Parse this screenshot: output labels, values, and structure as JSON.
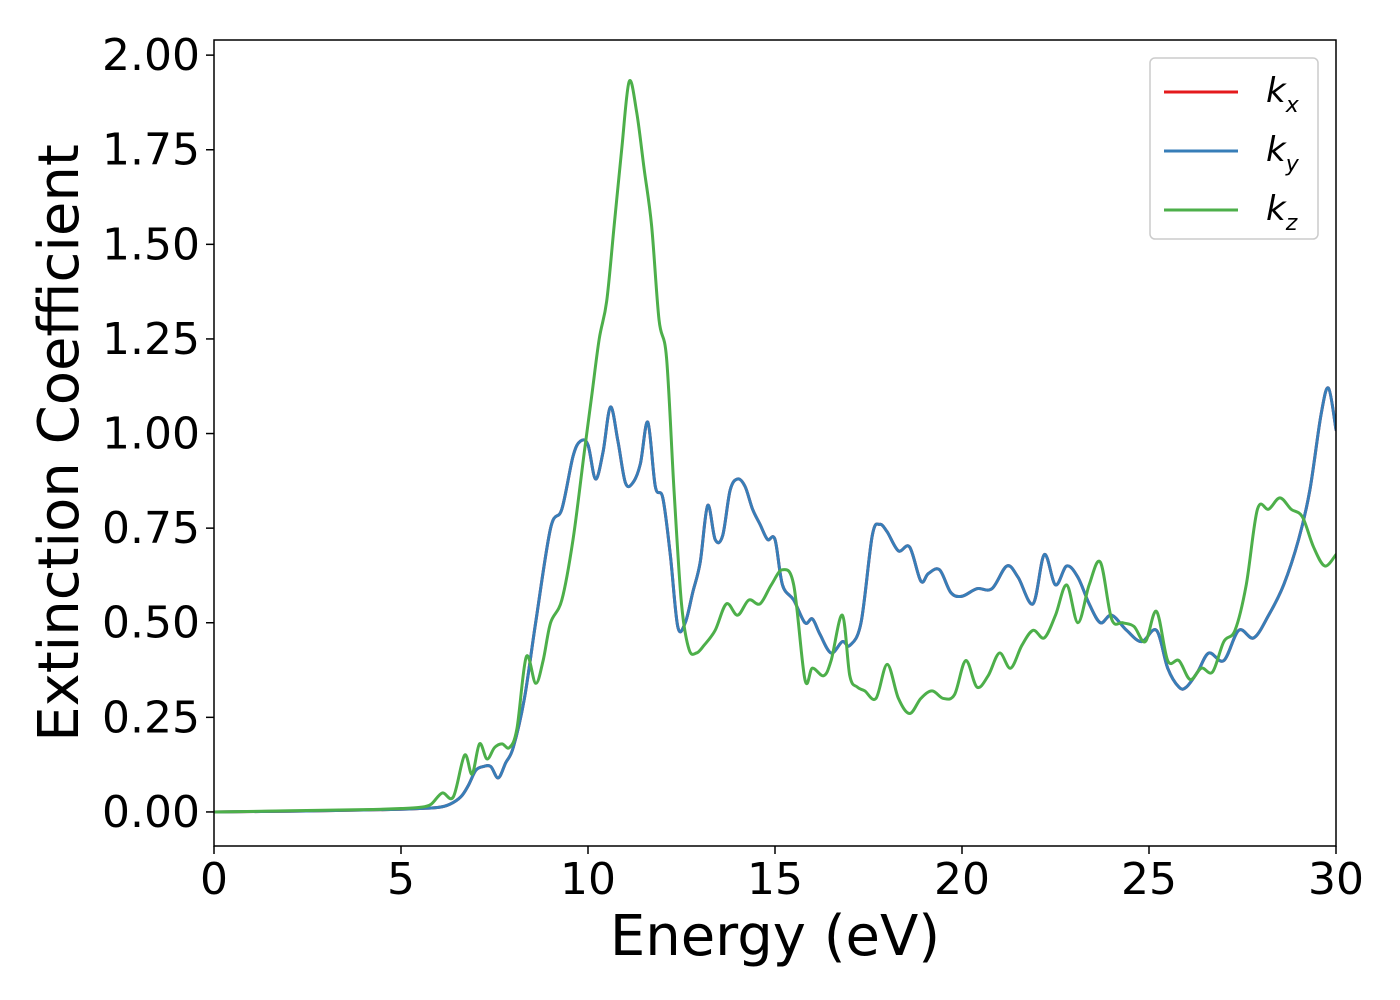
{
  "chart_data": {
    "type": "line",
    "title": "",
    "xlabel": "Energy (eV)",
    "ylabel": "Extinction Coefficient",
    "xlim": [
      0,
      30
    ],
    "ylim": [
      -0.09,
      2.04
    ],
    "xticks": [
      0,
      5,
      10,
      15,
      20,
      25,
      30
    ],
    "xtick_labels": [
      "0",
      "5",
      "10",
      "15",
      "20",
      "25",
      "30"
    ],
    "yticks": [
      0.0,
      0.25,
      0.5,
      0.75,
      1.0,
      1.25,
      1.5,
      1.75,
      2.0
    ],
    "ytick_labels": [
      "0.00",
      "0.25",
      "0.50",
      "0.75",
      "1.00",
      "1.25",
      "1.50",
      "1.75",
      "2.00"
    ],
    "grid": false,
    "legend_position": "top-right",
    "series": [
      {
        "name": "k_x",
        "label_main": "k",
        "label_sub": "x",
        "color": "#e41a1c",
        "x": [
          0,
          2,
          4,
          5,
          5.5,
          6,
          6.3,
          6.6,
          6.8,
          7.0,
          7.2,
          7.4,
          7.6,
          7.8,
          8.0,
          8.3,
          8.6,
          9.0,
          9.3,
          9.6,
          9.8,
          10.0,
          10.2,
          10.4,
          10.6,
          10.8,
          11.0,
          11.2,
          11.4,
          11.6,
          11.8,
          12.0,
          12.2,
          12.4,
          12.6,
          12.8,
          13.0,
          13.2,
          13.4,
          13.6,
          13.8,
          14.0,
          14.2,
          14.4,
          14.6,
          14.8,
          15.0,
          15.2,
          15.5,
          15.8,
          16.0,
          16.2,
          16.5,
          16.8,
          17.0,
          17.3,
          17.6,
          17.8,
          18.0,
          18.3,
          18.6,
          18.9,
          19.1,
          19.4,
          19.7,
          20.0,
          20.4,
          20.8,
          21.2,
          21.5,
          21.9,
          22.2,
          22.5,
          22.8,
          23.1,
          23.4,
          23.7,
          24.0,
          24.4,
          24.8,
          25.2,
          25.5,
          25.8,
          26.0,
          26.3,
          26.6,
          27.0,
          27.4,
          27.8,
          28.2,
          28.6,
          29.0,
          29.3,
          29.6,
          29.8,
          30.0
        ],
        "y": [
          0.0,
          0.002,
          0.005,
          0.007,
          0.009,
          0.012,
          0.02,
          0.04,
          0.07,
          0.11,
          0.12,
          0.12,
          0.09,
          0.13,
          0.17,
          0.3,
          0.5,
          0.75,
          0.8,
          0.94,
          0.98,
          0.97,
          0.88,
          0.95,
          1.07,
          0.98,
          0.87,
          0.87,
          0.92,
          1.03,
          0.86,
          0.83,
          0.68,
          0.49,
          0.5,
          0.58,
          0.66,
          0.81,
          0.72,
          0.73,
          0.85,
          0.88,
          0.86,
          0.8,
          0.76,
          0.72,
          0.72,
          0.6,
          0.56,
          0.5,
          0.51,
          0.47,
          0.42,
          0.45,
          0.44,
          0.5,
          0.73,
          0.76,
          0.74,
          0.69,
          0.7,
          0.61,
          0.63,
          0.64,
          0.58,
          0.57,
          0.59,
          0.59,
          0.65,
          0.62,
          0.55,
          0.68,
          0.6,
          0.65,
          0.62,
          0.55,
          0.5,
          0.52,
          0.48,
          0.45,
          0.48,
          0.38,
          0.33,
          0.33,
          0.37,
          0.42,
          0.4,
          0.48,
          0.46,
          0.52,
          0.6,
          0.72,
          0.85,
          1.05,
          1.12,
          1.01
        ]
      },
      {
        "name": "k_y",
        "label_main": "k",
        "label_sub": "y",
        "color": "#377eb8",
        "x": [
          0,
          2,
          4,
          5,
          5.5,
          6,
          6.3,
          6.6,
          6.8,
          7.0,
          7.2,
          7.4,
          7.6,
          7.8,
          8.0,
          8.3,
          8.6,
          9.0,
          9.3,
          9.6,
          9.8,
          10.0,
          10.2,
          10.4,
          10.6,
          10.8,
          11.0,
          11.2,
          11.4,
          11.6,
          11.8,
          12.0,
          12.2,
          12.4,
          12.6,
          12.8,
          13.0,
          13.2,
          13.4,
          13.6,
          13.8,
          14.0,
          14.2,
          14.4,
          14.6,
          14.8,
          15.0,
          15.2,
          15.5,
          15.8,
          16.0,
          16.2,
          16.5,
          16.8,
          17.0,
          17.3,
          17.6,
          17.8,
          18.0,
          18.3,
          18.6,
          18.9,
          19.1,
          19.4,
          19.7,
          20.0,
          20.4,
          20.8,
          21.2,
          21.5,
          21.9,
          22.2,
          22.5,
          22.8,
          23.1,
          23.4,
          23.7,
          24.0,
          24.4,
          24.8,
          25.2,
          25.5,
          25.8,
          26.0,
          26.3,
          26.6,
          27.0,
          27.4,
          27.8,
          28.2,
          28.6,
          29.0,
          29.3,
          29.6,
          29.8,
          30.0
        ],
        "y": [
          0.0,
          0.002,
          0.005,
          0.007,
          0.009,
          0.012,
          0.02,
          0.04,
          0.07,
          0.11,
          0.12,
          0.12,
          0.09,
          0.13,
          0.17,
          0.3,
          0.5,
          0.75,
          0.8,
          0.94,
          0.98,
          0.97,
          0.88,
          0.95,
          1.07,
          0.98,
          0.87,
          0.87,
          0.92,
          1.03,
          0.86,
          0.83,
          0.68,
          0.49,
          0.5,
          0.58,
          0.66,
          0.81,
          0.72,
          0.73,
          0.85,
          0.88,
          0.86,
          0.8,
          0.76,
          0.72,
          0.72,
          0.6,
          0.56,
          0.5,
          0.51,
          0.47,
          0.42,
          0.45,
          0.44,
          0.5,
          0.73,
          0.76,
          0.74,
          0.69,
          0.7,
          0.61,
          0.63,
          0.64,
          0.58,
          0.57,
          0.59,
          0.59,
          0.65,
          0.62,
          0.55,
          0.68,
          0.6,
          0.65,
          0.62,
          0.55,
          0.5,
          0.52,
          0.48,
          0.45,
          0.48,
          0.38,
          0.33,
          0.33,
          0.37,
          0.42,
          0.4,
          0.48,
          0.46,
          0.52,
          0.6,
          0.72,
          0.85,
          1.05,
          1.12,
          1.01
        ]
      },
      {
        "name": "k_z",
        "label_main": "k",
        "label_sub": "z",
        "color": "#4daf4a",
        "x": [
          0,
          2,
          4,
          5,
          5.5,
          5.8,
          6.1,
          6.4,
          6.7,
          6.9,
          7.1,
          7.3,
          7.5,
          7.7,
          7.9,
          8.1,
          8.35,
          8.6,
          8.8,
          9.0,
          9.3,
          9.6,
          9.9,
          10.1,
          10.3,
          10.5,
          10.7,
          10.9,
          11.1,
          11.3,
          11.5,
          11.7,
          11.9,
          12.1,
          12.3,
          12.5,
          12.7,
          12.9,
          13.1,
          13.4,
          13.7,
          14.0,
          14.3,
          14.6,
          14.9,
          15.2,
          15.5,
          15.8,
          16.0,
          16.3,
          16.5,
          16.8,
          17.0,
          17.2,
          17.4,
          17.7,
          18.0,
          18.3,
          18.6,
          18.9,
          19.2,
          19.5,
          19.8,
          20.1,
          20.4,
          20.7,
          21.0,
          21.3,
          21.6,
          21.9,
          22.2,
          22.5,
          22.8,
          23.1,
          23.4,
          23.7,
          24.0,
          24.3,
          24.6,
          24.9,
          25.2,
          25.5,
          25.8,
          26.1,
          26.4,
          26.7,
          27.0,
          27.3,
          27.6,
          27.9,
          28.2,
          28.5,
          28.8,
          29.1,
          29.4,
          29.7,
          30.0
        ],
        "y": [
          0.0,
          0.003,
          0.006,
          0.009,
          0.012,
          0.02,
          0.05,
          0.04,
          0.15,
          0.1,
          0.18,
          0.14,
          0.17,
          0.18,
          0.17,
          0.22,
          0.41,
          0.34,
          0.4,
          0.5,
          0.56,
          0.72,
          0.95,
          1.1,
          1.25,
          1.35,
          1.55,
          1.75,
          1.93,
          1.85,
          1.7,
          1.55,
          1.3,
          1.2,
          0.85,
          0.55,
          0.43,
          0.42,
          0.44,
          0.48,
          0.55,
          0.52,
          0.56,
          0.55,
          0.6,
          0.64,
          0.6,
          0.35,
          0.38,
          0.36,
          0.4,
          0.52,
          0.36,
          0.33,
          0.32,
          0.3,
          0.39,
          0.3,
          0.26,
          0.3,
          0.32,
          0.3,
          0.31,
          0.4,
          0.33,
          0.36,
          0.42,
          0.38,
          0.44,
          0.48,
          0.46,
          0.52,
          0.6,
          0.5,
          0.6,
          0.66,
          0.51,
          0.5,
          0.49,
          0.45,
          0.53,
          0.4,
          0.4,
          0.35,
          0.38,
          0.37,
          0.45,
          0.48,
          0.6,
          0.8,
          0.8,
          0.83,
          0.8,
          0.78,
          0.7,
          0.65,
          0.68
        ]
      }
    ]
  }
}
